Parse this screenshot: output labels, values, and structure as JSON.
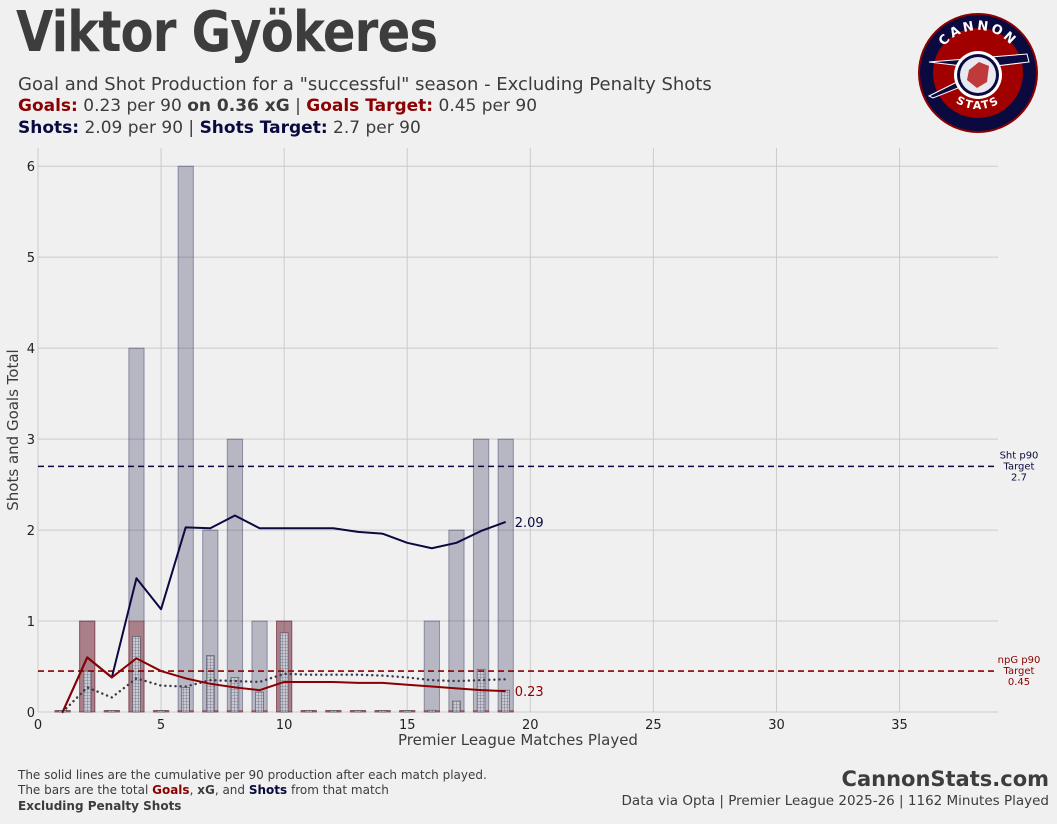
{
  "header": {
    "title": "Viktor Gyökeres",
    "subtitle": "Goal and Shot Production for a \"successful\" season - Excluding Penalty Shots",
    "goals_label": "Goals:",
    "goals_value": "0.23 per 90",
    "xg_label": "on 0.36 xG",
    "sep": "|",
    "goals_target_label": "Goals Target:",
    "goals_target_value": "0.45 per 90",
    "shots_label": "Shots:",
    "shots_value": "2.09 per 90",
    "shots_target_label": "Shots Target:",
    "shots_target_value": "2.7 per 90"
  },
  "logo": {
    "top_text": "CANNON",
    "bottom_text": "STATS"
  },
  "footer": {
    "note1": "The solid lines are the cumulative per 90 production after each match played.",
    "note2_pre": "The bars are the total",
    "note2_goals": "Goals",
    "note2_comma": ",",
    "note2_xg": "xG",
    "note2_and": ", and",
    "note2_shots": "Shots",
    "note2_post": "from that match",
    "note3": "Excluding Penalty Shots",
    "brand": "CannonStats.com",
    "source": "Data via Opta | Premier League 2025-26 | 1162 Minutes Played"
  },
  "colors": {
    "goals": "#8b0000",
    "shots": "#0a0a40",
    "xg": "#3a3a4a",
    "bg": "#f0f0f0"
  },
  "chart_data": {
    "type": "bar",
    "xlabel": "Premier League Matches Played",
    "ylabel": "Shots and Goals Total",
    "xlim": [
      0,
      39
    ],
    "ylim": [
      0,
      6.2
    ],
    "xticks": [
      0,
      5,
      10,
      15,
      20,
      25,
      30,
      35
    ],
    "yticks": [
      0,
      1,
      2,
      3,
      4,
      5,
      6
    ],
    "grid": true,
    "matches": [
      1,
      2,
      3,
      4,
      5,
      6,
      7,
      8,
      9,
      10,
      11,
      12,
      13,
      14,
      15,
      16,
      17,
      18,
      19
    ],
    "shots_per_match": [
      0,
      1,
      0,
      4,
      0,
      6,
      2,
      3,
      1,
      1,
      0,
      0,
      0,
      0,
      0,
      1,
      2,
      3,
      3
    ],
    "goals_per_match": [
      0,
      1,
      0,
      1,
      0,
      0,
      0,
      0,
      0,
      1,
      0,
      0,
      0,
      0,
      0,
      0,
      0,
      0,
      0
    ],
    "xg_per_match": [
      0,
      0.45,
      0,
      0.83,
      0,
      0.27,
      0.62,
      0.38,
      0.22,
      0.87,
      0,
      0,
      0,
      0,
      0,
      0.02,
      0.12,
      0.47,
      0.24
    ],
    "shots_cumulative_p90": [
      0,
      0.6,
      0.38,
      1.47,
      1.13,
      2.03,
      2.02,
      2.16,
      2.02,
      2.02,
      2.02,
      2.02,
      1.98,
      1.96,
      1.86,
      1.8,
      1.86,
      1.99,
      2.09
    ],
    "goals_cumulative_p90": [
      0,
      0.6,
      0.38,
      0.59,
      0.45,
      0.37,
      0.31,
      0.27,
      0.24,
      0.33,
      0.33,
      0.33,
      0.32,
      0.32,
      0.3,
      0.28,
      0.26,
      0.24,
      0.23
    ],
    "xg_cumulative_p90": [
      0,
      0.27,
      0.16,
      0.37,
      0.29,
      0.28,
      0.35,
      0.34,
      0.33,
      0.42,
      0.41,
      0.41,
      0.41,
      0.4,
      0.38,
      0.35,
      0.34,
      0.35,
      0.36
    ],
    "shots_end_label": "2.09",
    "goals_end_label": "0.23",
    "shots_target": {
      "value": 2.7,
      "label_lines": [
        "Sht p90",
        "Target",
        "2.7"
      ]
    },
    "goals_target": {
      "value": 0.45,
      "label_lines": [
        "npG p90",
        "Target",
        "0.45"
      ]
    }
  }
}
